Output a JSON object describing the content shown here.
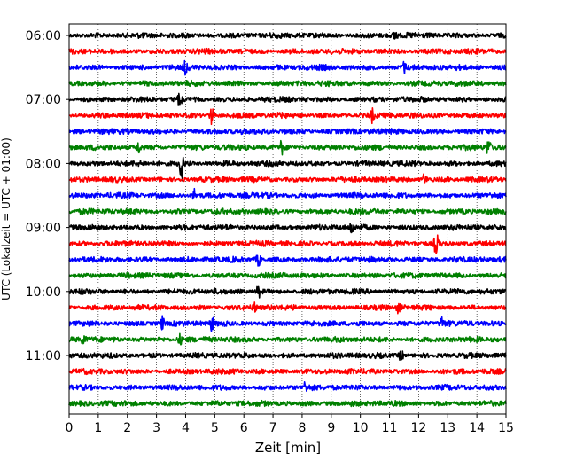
{
  "chart_data": {
    "type": "line",
    "title": "",
    "xlabel": "Zeit  [min]",
    "ylabel": "UTC (Lokalzeit = UTC + 01:00)",
    "xlim": [
      0,
      15
    ],
    "x_ticks": [
      "0",
      "1",
      "2",
      "3",
      "4",
      "5",
      "6",
      "7",
      "8",
      "9",
      "10",
      "11",
      "12",
      "13",
      "14",
      "15"
    ],
    "y_ticks": [
      "06:00",
      "07:00",
      "08:00",
      "09:00",
      "10:00",
      "11:00"
    ],
    "grid": "vertical dotted",
    "trace_interval_minutes": 15,
    "series": [
      {
        "start": "06:00",
        "color": "#000000",
        "bursts": [
          {
            "t": 11.2,
            "a": 7
          }
        ]
      },
      {
        "start": "06:15",
        "color": "#ff0000",
        "bursts": []
      },
      {
        "start": "06:30",
        "color": "#0000ff",
        "bursts": [
          {
            "t": 4.0,
            "a": 6
          },
          {
            "t": 11.5,
            "a": 6
          }
        ]
      },
      {
        "start": "06:45",
        "color": "#008000",
        "bursts": []
      },
      {
        "start": "07:00",
        "color": "#000000",
        "bursts": [
          {
            "t": 3.8,
            "a": 8
          }
        ]
      },
      {
        "start": "07:15",
        "color": "#ff0000",
        "bursts": [
          {
            "t": 4.9,
            "a": 9
          },
          {
            "t": 10.4,
            "a": 6
          }
        ]
      },
      {
        "start": "07:30",
        "color": "#0000ff",
        "bursts": []
      },
      {
        "start": "07:45",
        "color": "#008000",
        "bursts": [
          {
            "t": 2.4,
            "a": 6
          },
          {
            "t": 7.3,
            "a": 8
          },
          {
            "t": 14.4,
            "a": 10
          }
        ]
      },
      {
        "start": "08:00",
        "color": "#000000",
        "bursts": [
          {
            "t": 3.85,
            "a": 22
          }
        ]
      },
      {
        "start": "08:15",
        "color": "#ff0000",
        "bursts": [
          {
            "t": 12.2,
            "a": 6
          }
        ]
      },
      {
        "start": "08:30",
        "color": "#0000ff",
        "bursts": [
          {
            "t": 4.3,
            "a": 7
          }
        ]
      },
      {
        "start": "08:45",
        "color": "#008000",
        "bursts": []
      },
      {
        "start": "09:00",
        "color": "#000000",
        "bursts": [
          {
            "t": 9.7,
            "a": 7
          }
        ]
      },
      {
        "start": "09:15",
        "color": "#ff0000",
        "bursts": [
          {
            "t": 12.6,
            "a": 13
          }
        ]
      },
      {
        "start": "09:30",
        "color": "#0000ff",
        "bursts": [
          {
            "t": 6.5,
            "a": 7
          }
        ]
      },
      {
        "start": "09:45",
        "color": "#008000",
        "bursts": []
      },
      {
        "start": "10:00",
        "color": "#000000",
        "bursts": [
          {
            "t": 6.5,
            "a": 6
          }
        ]
      },
      {
        "start": "10:15",
        "color": "#ff0000",
        "bursts": [
          {
            "t": 6.4,
            "a": 5
          },
          {
            "t": 11.3,
            "a": 5
          }
        ]
      },
      {
        "start": "10:30",
        "color": "#0000ff",
        "bursts": [
          {
            "t": 3.2,
            "a": 7
          },
          {
            "t": 4.9,
            "a": 8
          },
          {
            "t": 12.8,
            "a": 6
          }
        ]
      },
      {
        "start": "10:45",
        "color": "#008000",
        "bursts": [
          {
            "t": 0.5,
            "a": 6
          },
          {
            "t": 3.8,
            "a": 5
          }
        ]
      },
      {
        "start": "11:00",
        "color": "#000000",
        "bursts": [
          {
            "t": 11.4,
            "a": 6
          }
        ]
      },
      {
        "start": "11:15",
        "color": "#ff0000",
        "bursts": []
      },
      {
        "start": "11:30",
        "color": "#0000ff",
        "bursts": [
          {
            "t": 8.1,
            "a": 5
          }
        ]
      },
      {
        "start": "11:45",
        "color": "#008000",
        "bursts": []
      }
    ]
  }
}
